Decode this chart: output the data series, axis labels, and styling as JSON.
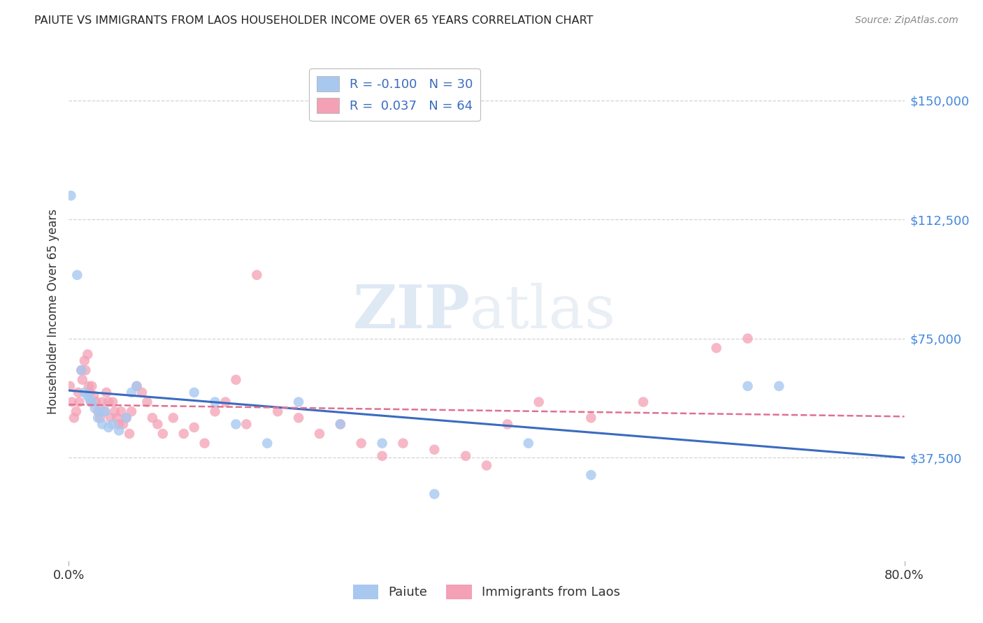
{
  "title": "PAIUTE VS IMMIGRANTS FROM LAOS HOUSEHOLDER INCOME OVER 65 YEARS CORRELATION CHART",
  "source": "Source: ZipAtlas.com",
  "ylabel": "Householder Income Over 65 years",
  "ytick_labels": [
    "$37,500",
    "$75,000",
    "$112,500",
    "$150,000"
  ],
  "ytick_values": [
    37500,
    75000,
    112500,
    150000
  ],
  "xmin": 0.0,
  "xmax": 0.8,
  "ymin": 5000,
  "ymax": 162000,
  "legend_paiute_R": "-0.100",
  "legend_paiute_N": "30",
  "legend_laos_R": "0.037",
  "legend_laos_N": "64",
  "paiute_color": "#a8c8f0",
  "laos_color": "#f4a0b5",
  "paiute_line_color": "#3a6bbf",
  "laos_line_color": "#e07090",
  "background_color": "#ffffff",
  "grid_color": "#c8c8c8",
  "paiute_x": [
    0.002,
    0.008,
    0.012,
    0.015,
    0.018,
    0.02,
    0.022,
    0.025,
    0.028,
    0.03,
    0.032,
    0.035,
    0.038,
    0.042,
    0.048,
    0.055,
    0.06,
    0.065,
    0.12,
    0.14,
    0.16,
    0.19,
    0.22,
    0.26,
    0.3,
    0.35,
    0.44,
    0.5,
    0.65,
    0.68
  ],
  "paiute_y": [
    120000,
    95000,
    65000,
    58000,
    57000,
    56000,
    55000,
    53000,
    50000,
    52000,
    48000,
    52000,
    47000,
    48000,
    46000,
    50000,
    58000,
    60000,
    58000,
    55000,
    48000,
    42000,
    55000,
    48000,
    42000,
    26000,
    42000,
    32000,
    60000,
    60000
  ],
  "laos_x": [
    0.001,
    0.003,
    0.005,
    0.007,
    0.009,
    0.01,
    0.012,
    0.013,
    0.015,
    0.016,
    0.018,
    0.019,
    0.02,
    0.021,
    0.022,
    0.024,
    0.026,
    0.028,
    0.03,
    0.032,
    0.034,
    0.036,
    0.038,
    0.04,
    0.042,
    0.044,
    0.046,
    0.048,
    0.05,
    0.052,
    0.055,
    0.058,
    0.06,
    0.065,
    0.07,
    0.075,
    0.08,
    0.085,
    0.09,
    0.1,
    0.11,
    0.12,
    0.13,
    0.14,
    0.15,
    0.16,
    0.17,
    0.18,
    0.2,
    0.22,
    0.24,
    0.26,
    0.28,
    0.3,
    0.32,
    0.35,
    0.38,
    0.4,
    0.42,
    0.45,
    0.5,
    0.55,
    0.62,
    0.65
  ],
  "laos_y": [
    60000,
    55000,
    50000,
    52000,
    58000,
    55000,
    65000,
    62000,
    68000,
    65000,
    70000,
    60000,
    58000,
    55000,
    60000,
    57000,
    55000,
    52000,
    50000,
    55000,
    52000,
    58000,
    55000,
    50000,
    55000,
    52000,
    50000,
    48000,
    52000,
    48000,
    50000,
    45000,
    52000,
    60000,
    58000,
    55000,
    50000,
    48000,
    45000,
    50000,
    45000,
    47000,
    42000,
    52000,
    55000,
    62000,
    48000,
    95000,
    52000,
    50000,
    45000,
    48000,
    42000,
    38000,
    42000,
    40000,
    38000,
    35000,
    48000,
    55000,
    50000,
    55000,
    72000,
    75000
  ]
}
